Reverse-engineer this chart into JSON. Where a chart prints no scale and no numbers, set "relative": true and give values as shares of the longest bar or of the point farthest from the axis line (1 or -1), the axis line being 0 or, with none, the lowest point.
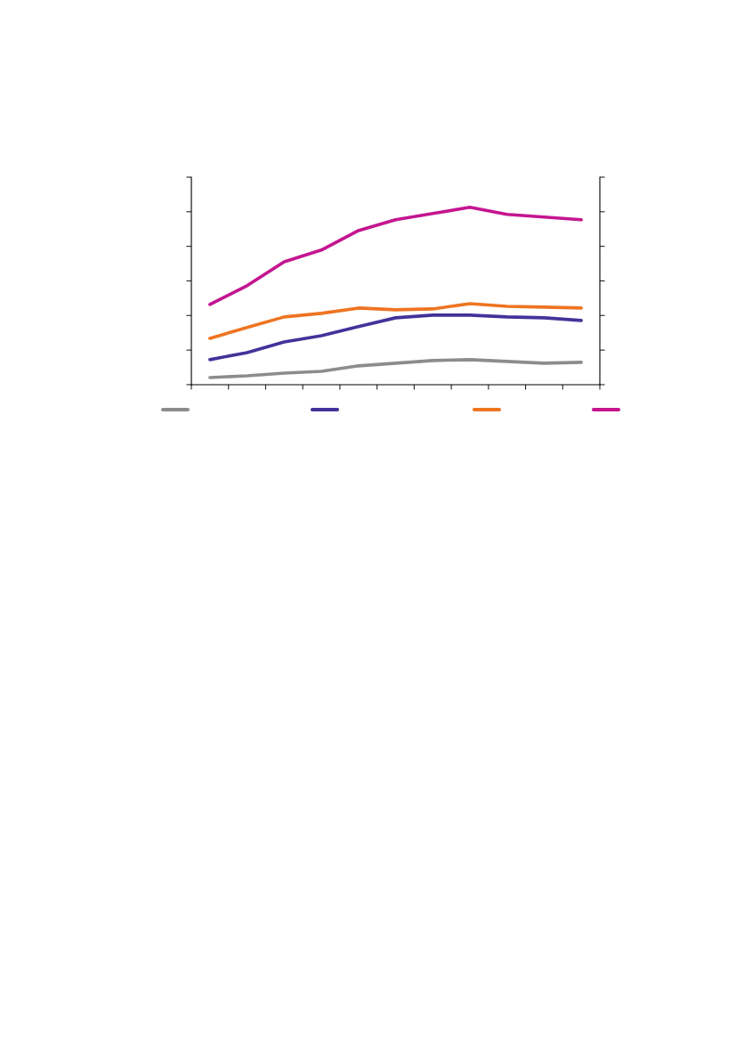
{
  "chart_data": {
    "type": "line",
    "relative": true,
    "legend": false,
    "grid": false,
    "categories": [
      null,
      null,
      null,
      null,
      null,
      null,
      null,
      null,
      null,
      null,
      null
    ],
    "series": [
      {
        "color": "#8c8c8c",
        "values": [
          0.04,
          0.05,
          0.065,
          0.075,
          0.106,
          0.121,
          0.136,
          0.141,
          0.131,
          0.121,
          0.126
        ]
      },
      {
        "color": "#44329a",
        "values": [
          0.141,
          0.181,
          0.241,
          0.276,
          0.327,
          0.377,
          0.392,
          0.392,
          0.382,
          0.377,
          0.362
        ]
      },
      {
        "color": "#ee7421",
        "values": [
          0.261,
          0.322,
          0.382,
          0.402,
          0.432,
          0.422,
          0.427,
          0.457,
          0.442,
          0.437,
          0.432
        ]
      },
      {
        "color": "#c4158f",
        "values": [
          0.452,
          0.558,
          0.693,
          0.759,
          0.869,
          0.93,
          0.965,
          1,
          0.96,
          0.945,
          0.93
        ]
      }
    ]
  }
}
